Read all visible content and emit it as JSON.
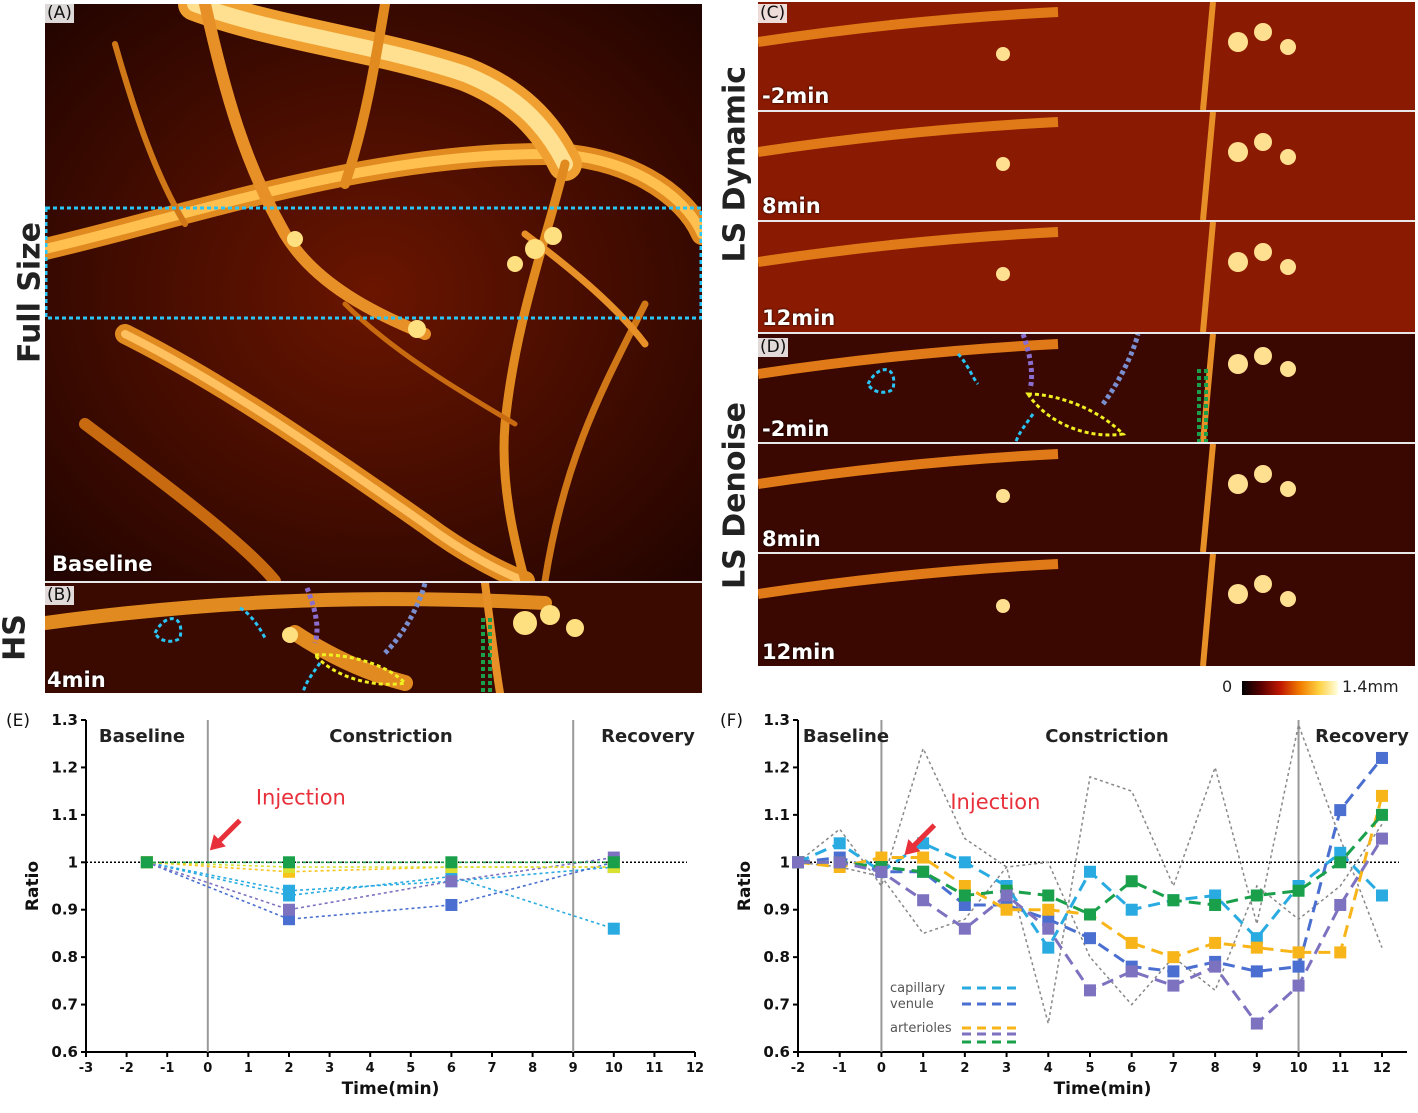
{
  "figure": {
    "side_labels": {
      "full_size": "Full Size",
      "hs": "HS",
      "ls_dynamic": "LS Dynamic",
      "ls_denoise": "LS  Denoise"
    },
    "panels": {
      "A": {
        "label": "(A)",
        "time": "Baseline"
      },
      "B": {
        "label": "(B)",
        "time": "4min"
      },
      "C": {
        "label": "(C)",
        "times": [
          "-2min",
          "8min",
          "12min"
        ]
      },
      "D": {
        "label": "(D)",
        "times": [
          "-2min",
          "8min",
          "12min"
        ]
      },
      "E": {
        "label": "(E)"
      },
      "F": {
        "label": "(F)"
      }
    },
    "colorbar": {
      "min_label": "0",
      "max_label": "1.4mm",
      "colors": [
        "#000000",
        "#5a0000",
        "#c01800",
        "#f07a00",
        "#ffd040",
        "#ffffe0"
      ]
    }
  },
  "chart_data": [
    {
      "type": "scatter",
      "panel": "E",
      "xlabel": "Time(min)",
      "ylabel": "Ratio",
      "xlim": [
        -3,
        12
      ],
      "ylim": [
        0.6,
        1.3
      ],
      "xticks": [
        -3,
        -2,
        -1,
        0,
        1,
        2,
        3,
        4,
        5,
        6,
        7,
        8,
        9,
        10,
        11,
        12
      ],
      "yticks": [
        0.6,
        0.7,
        0.8,
        0.9,
        1,
        1.1,
        1.2,
        1.3
      ],
      "ytick_labels": [
        "0.6",
        "0.7",
        "0.8",
        "0.9",
        "1",
        "1.1",
        "1.2",
        "1.3"
      ],
      "phases": [
        "Baseline",
        "Constriction",
        "Recovery"
      ],
      "phase_dividers": [
        0,
        9
      ],
      "reference_line": 1,
      "annotation": "Injection",
      "x": [
        -1.5,
        2,
        6,
        10
      ],
      "series": [
        {
          "color": "#29abe2",
          "values": [
            1.0,
            0.93,
            0.97,
            0.86
          ]
        },
        {
          "color": "#29abe2",
          "values": [
            1.0,
            0.94,
            0.96,
            0.99
          ]
        },
        {
          "color": "#4a6fd0",
          "values": [
            1.0,
            0.88,
            0.91,
            1.0
          ]
        },
        {
          "color": "#7d72c0",
          "values": [
            1.0,
            0.9,
            0.96,
            1.01
          ]
        },
        {
          "color": "#f8c41a",
          "values": [
            1.0,
            0.98,
            0.99,
            0.99
          ]
        },
        {
          "color": "#d8e030",
          "values": [
            1.0,
            0.99,
            0.99,
            0.99
          ]
        },
        {
          "color": "#1aa04a",
          "values": [
            1.0,
            1.0,
            1.0,
            1.0
          ]
        }
      ]
    },
    {
      "type": "line",
      "panel": "F",
      "xlabel": "Time(min)",
      "ylabel": "Ratio",
      "xlim": [
        -2,
        12.6
      ],
      "ylim": [
        0.6,
        1.3
      ],
      "xticks": [
        -2,
        -1,
        0,
        1,
        2,
        3,
        4,
        5,
        6,
        7,
        8,
        9,
        10,
        11,
        12
      ],
      "yticks": [
        0.6,
        0.7,
        0.8,
        0.9,
        1,
        1.1,
        1.2,
        1.3
      ],
      "ytick_labels": [
        "0.6",
        "0.7",
        "0.8",
        "0.9",
        "1",
        "1.1",
        "1.2",
        "1.3"
      ],
      "phases": [
        "Baseline",
        "Constriction",
        "Recovery"
      ],
      "phase_dividers": [
        0,
        10
      ],
      "reference_line": 1,
      "annotation": "Injection",
      "legend": [
        "capillary",
        "venule",
        "arterioles"
      ],
      "x": [
        -2,
        -1,
        0,
        1,
        2,
        3,
        4,
        5,
        6,
        7,
        8,
        9,
        10,
        11,
        12
      ],
      "series": [
        {
          "color": "#29abe2",
          "values": [
            1.0,
            1.04,
            0.98,
            1.04,
            1.0,
            0.95,
            0.82,
            0.98,
            0.9,
            0.92,
            0.93,
            0.84,
            0.95,
            1.02,
            0.93
          ]
        },
        {
          "color": "#4a6fd0",
          "values": [
            1.0,
            1.01,
            0.98,
            0.98,
            0.91,
            0.91,
            0.88,
            0.84,
            0.78,
            0.77,
            0.79,
            0.77,
            0.78,
            1.11,
            1.22
          ]
        },
        {
          "color": "#f8b51a",
          "values": [
            1.0,
            0.99,
            1.01,
            1.01,
            0.95,
            0.9,
            0.9,
            0.89,
            0.83,
            0.8,
            0.83,
            0.82,
            0.81,
            0.81,
            1.14
          ]
        },
        {
          "color": "#1aa04a",
          "values": [
            1.0,
            1.0,
            0.99,
            0.98,
            0.93,
            0.94,
            0.93,
            0.89,
            0.96,
            0.92,
            0.91,
            0.93,
            0.94,
            1.0,
            1.1
          ]
        },
        {
          "color": "#7d72c0",
          "values": [
            1.0,
            1.0,
            0.98,
            0.92,
            0.86,
            0.93,
            0.86,
            0.73,
            0.77,
            0.74,
            0.78,
            0.66,
            0.74,
            0.91,
            1.05
          ]
        }
      ],
      "dotted_gray": [
        [
          1.0,
          1.07,
          0.95,
          1.24,
          1.05,
          0.99,
          0.66,
          1.18,
          1.15,
          0.95,
          1.2,
          0.87,
          1.29,
          1.05,
          0.82
        ],
        [
          1.0,
          0.99,
          0.97,
          0.85,
          0.88,
          0.99,
          1.0,
          0.8,
          0.7,
          0.8,
          0.73,
          0.95,
          0.88,
          0.95,
          1.08
        ]
      ]
    }
  ]
}
